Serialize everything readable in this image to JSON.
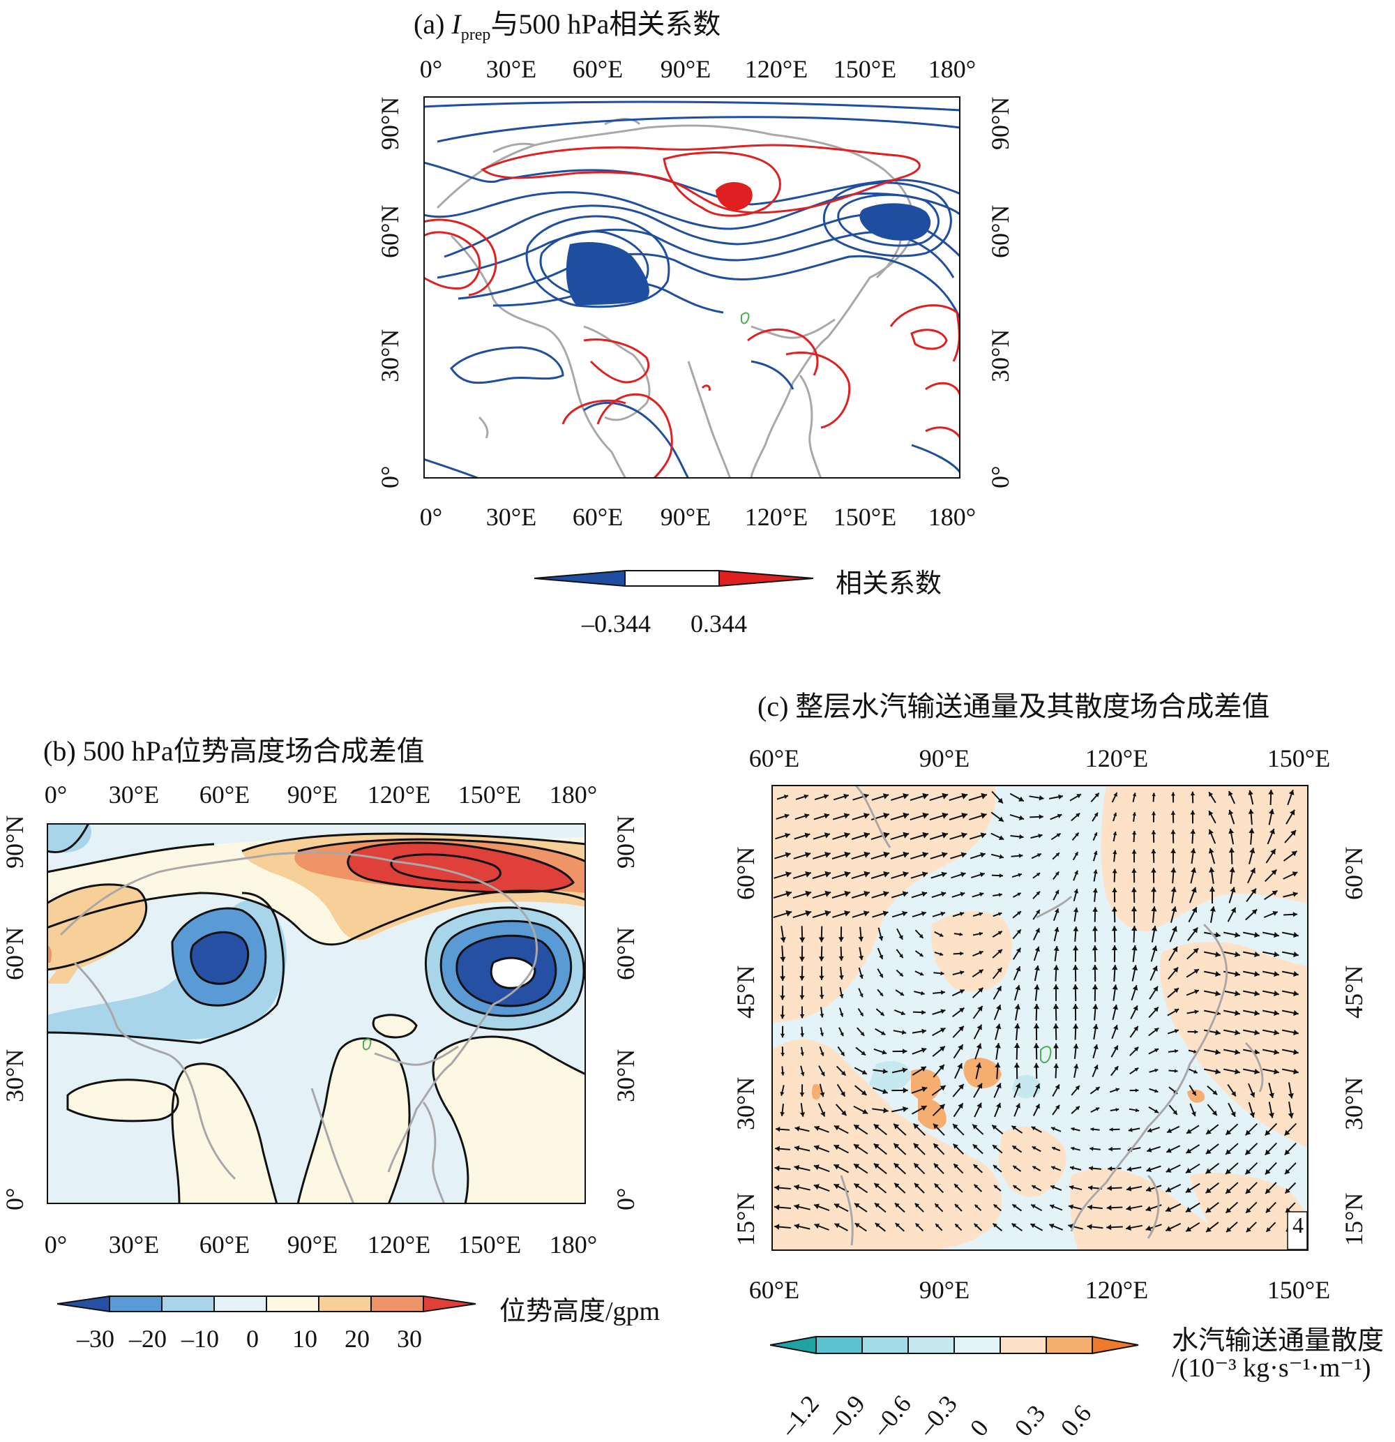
{
  "panel_a": {
    "title_prefix": "(a) ",
    "title_I": "I",
    "title_sub": "prep",
    "title_suffix": "与500 hPa相关系数",
    "lon_ticks_top": [
      "0°",
      "30°E",
      "60°E",
      "90°E",
      "120°E",
      "150°E",
      "180°"
    ],
    "lon_ticks_bottom": [
      "0°",
      "30°E",
      "60°E",
      "90°E",
      "120°E",
      "150°E",
      "180°"
    ],
    "lat_ticks": [
      "90°N",
      "60°N",
      "30°N",
      "0°"
    ],
    "colorbar_label": "相关系数",
    "colorbar_values": [
      "–0.344",
      "0.344"
    ],
    "colors": {
      "negative": "#1f4ea1",
      "positive": "#e02020",
      "coast": "#a8a8a8"
    }
  },
  "panel_b": {
    "title": "(b) 500 hPa位势高度场合成差值",
    "lon_ticks_top": [
      "0°",
      "30°E",
      "60°E",
      "90°E",
      "120°E",
      "150°E",
      "180°"
    ],
    "lon_ticks_bottom": [
      "0°",
      "30°E",
      "60°E",
      "90°E",
      "120°E",
      "150°E",
      "180°"
    ],
    "lat_ticks": [
      "90°N",
      "60°N",
      "30°N",
      "0°"
    ],
    "colorbar_label": "位势高度/gpm",
    "colorbar_values": [
      "–30",
      "–20",
      "–10",
      "0",
      "10",
      "20",
      "30"
    ],
    "colors": [
      "#2550a3",
      "#5b9bd5",
      "#a8d5ea",
      "#e4f2f8",
      "#fdf8e4",
      "#f7cf98",
      "#ee9466",
      "#e0403a"
    ]
  },
  "panel_c": {
    "title": "(c) 整层水汽输送通量及其散度场合成差值",
    "lon_ticks_top": [
      "60°E",
      "90°E",
      "120°E",
      "150°E"
    ],
    "lon_ticks_bottom": [
      "60°E",
      "90°E",
      "120°E",
      "150°E"
    ],
    "lat_ticks": [
      "60°N",
      "45°N",
      "30°N",
      "15°N"
    ],
    "reference_vector": "4",
    "colorbar_label_line1": "水汽输送通量散度",
    "colorbar_label_line2": "/(10⁻³ kg·s⁻¹·m⁻¹)",
    "colorbar_values": [
      "–1.2",
      "–0.9",
      "–0.6",
      "–0.3",
      "0",
      "0.3",
      "0.6"
    ],
    "colors": [
      "#20a3a3",
      "#5cc2d2",
      "#a3dbe6",
      "#c6e8ef",
      "#e4f3f8",
      "#fde2c8",
      "#f5ad70",
      "#ee7a2a"
    ]
  }
}
